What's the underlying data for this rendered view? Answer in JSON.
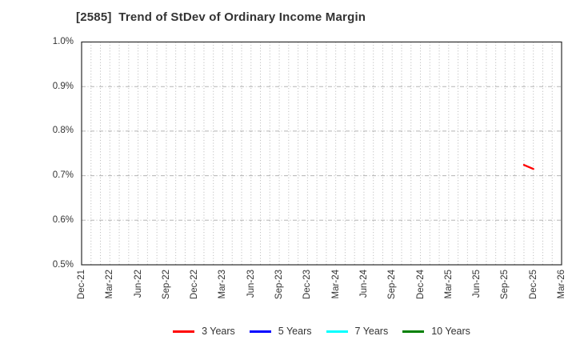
{
  "header": {
    "title": "[2585]  Trend of StDev of Ordinary Income Margin"
  },
  "chart_data": {
    "type": "line",
    "title": "[2585]  Trend of StDev of Ordinary Income Margin",
    "grid": true,
    "legend_position": "bottom",
    "x_axis": {
      "start": "Dec-21",
      "end": "Mar-26",
      "total_months": 51,
      "minor_grid": "monthly",
      "tick_labels": [
        "Dec-21",
        "Mar-22",
        "Jun-22",
        "Sep-22",
        "Dec-22",
        "Mar-23",
        "Jun-23",
        "Sep-23",
        "Dec-23",
        "Mar-24",
        "Jun-24",
        "Sep-24",
        "Dec-24",
        "Mar-25",
        "Jun-25",
        "Sep-25",
        "Dec-25",
        "Mar-26"
      ]
    },
    "y_axis": {
      "unit": "%",
      "lim": [
        0.5,
        1.0
      ],
      "ticks": [
        {
          "value": 0.5,
          "label": "0.5%"
        },
        {
          "value": 0.6,
          "label": "0.6%"
        },
        {
          "value": 0.7,
          "label": "0.7%"
        },
        {
          "value": 0.8,
          "label": "0.8%"
        },
        {
          "value": 0.9,
          "label": "0.9%"
        },
        {
          "value": 1.0,
          "label": "1.0%"
        }
      ]
    },
    "series": [
      {
        "name": "3 Years",
        "color": "#ff0000",
        "points": [
          {
            "x": "Nov-25",
            "y": 0.724
          },
          {
            "x": "Dec-25",
            "y": 0.715
          }
        ]
      },
      {
        "name": "5 Years",
        "color": "#0000ff",
        "points": []
      },
      {
        "name": "7 Years",
        "color": "#00ffff",
        "points": []
      },
      {
        "name": "10 Years",
        "color": "#008000",
        "points": []
      }
    ]
  },
  "styles": {
    "frame_color": "#2b2b2b",
    "grid_color": "#b5b5b5",
    "text_color": "#333333",
    "background": "#ffffff"
  }
}
